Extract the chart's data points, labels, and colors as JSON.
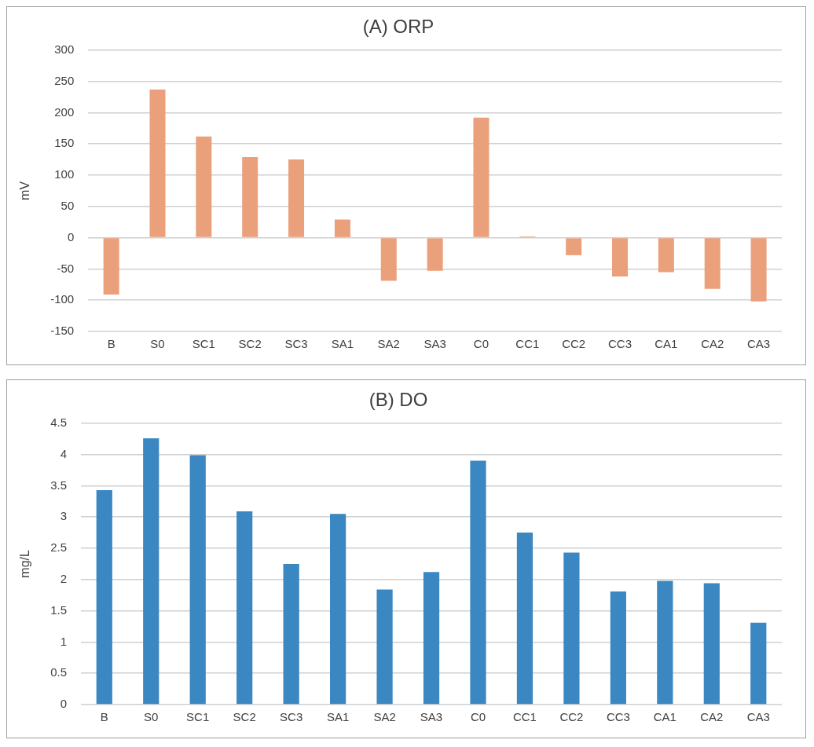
{
  "chart_data": [
    {
      "type": "bar",
      "title": "(A) ORP",
      "ylabel": "mV",
      "categories": [
        "B",
        "S0",
        "SC1",
        "SC2",
        "SC3",
        "SA1",
        "SA2",
        "SA3",
        "C0",
        "CC1",
        "CC2",
        "CC3",
        "CA1",
        "CA2",
        "CA3"
      ],
      "values": [
        -91,
        237,
        162,
        129,
        125,
        29,
        -69,
        -53,
        192,
        2,
        -28,
        -62,
        -55,
        -82,
        -102
      ],
      "color": "#eba07c",
      "ylim": [
        -150,
        300
      ],
      "yticks": [
        -150,
        -100,
        -50,
        0,
        50,
        100,
        150,
        200,
        250,
        300
      ],
      "grid": "y"
    },
    {
      "type": "bar",
      "title": "(B) DO",
      "ylabel": "mg/L",
      "categories": [
        "B",
        "S0",
        "SC1",
        "SC2",
        "SC3",
        "SA1",
        "SA2",
        "SA3",
        "C0",
        "CC1",
        "CC2",
        "CC3",
        "CA1",
        "CA2",
        "CA3"
      ],
      "values": [
        3.43,
        4.26,
        3.99,
        3.09,
        2.25,
        3.05,
        1.84,
        2.12,
        3.9,
        2.75,
        2.43,
        1.81,
        1.98,
        1.94,
        1.31
      ],
      "color": "#3a87c2",
      "ylim": [
        0,
        4.5
      ],
      "yticks": [
        0,
        0.5,
        1,
        1.5,
        2,
        2.5,
        3,
        3.5,
        4,
        4.5
      ],
      "grid": "y"
    }
  ]
}
